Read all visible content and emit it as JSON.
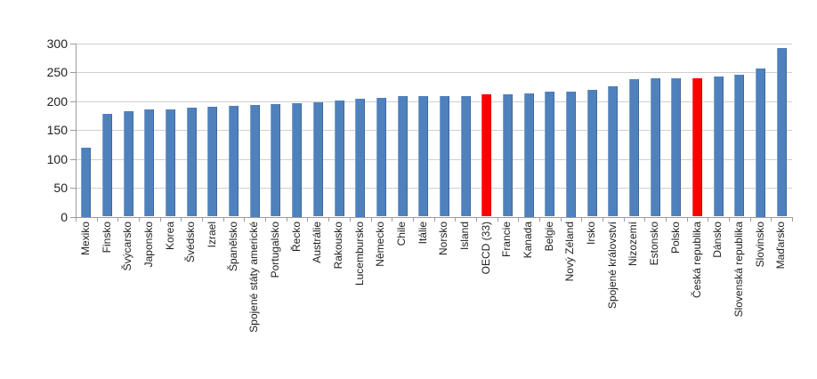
{
  "chart_data": {
    "type": "bar",
    "title": "",
    "xlabel": "",
    "ylabel": "",
    "categories": [
      "Mexiko",
      "Finsko",
      "Švýcarsko",
      "Japonsko",
      "Korea",
      "Švédsko",
      "Izrael",
      "Španělsko",
      "Spojené státy americké",
      "Portugalsko",
      "Řecko",
      "Austrálie",
      "Rakousko",
      "Lucembursko",
      "Německo",
      "Chile",
      "Itálie",
      "Norsko",
      "Island",
      "OECD (33)",
      "Francie",
      "Kanada",
      "Belgie",
      "Nový Zéland",
      "Irsko",
      "Spojené království",
      "Nizozemí",
      "Estonsko",
      "Polsko",
      "Česká republika",
      "Dánsko",
      "Slovenská republika",
      "Slovinsko",
      "Maďarsko"
    ],
    "values": [
      120,
      178,
      183,
      185,
      185,
      189,
      190,
      192,
      194,
      195,
      197,
      198,
      201,
      204,
      205,
      208,
      208,
      208,
      209,
      211,
      212,
      214,
      216,
      217,
      220,
      226,
      238,
      239,
      239,
      240,
      243,
      246,
      257,
      291
    ],
    "highlighted_categories": [
      "OECD (33)",
      "Česká republika"
    ],
    "ylim": [
      0,
      300
    ],
    "yticks": [
      0,
      50,
      100,
      150,
      200,
      250,
      300
    ],
    "grid": true,
    "legend": "none",
    "bar_label_rotation_deg": 90,
    "colors": {
      "bar": "#4f81bd",
      "highlight": "#ff0000",
      "gridline": "#d0d0d0",
      "axis": "#9b9b9b",
      "text": "#1f1f1f",
      "background": "#ffffff"
    }
  }
}
